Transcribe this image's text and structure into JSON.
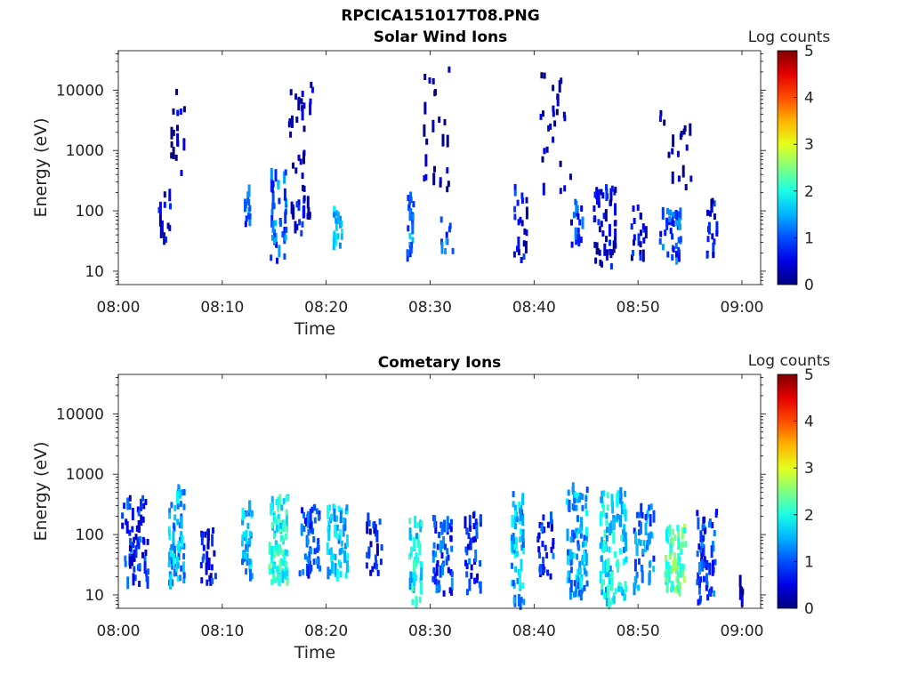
{
  "figure": {
    "title": "RPCICA151017T08.PNG",
    "background": "#ffffff"
  },
  "chart_data": [
    {
      "type": "heatmap",
      "title": "Solar Wind Ions",
      "xlabel": "Time",
      "ylabel": "Energy (eV)",
      "x_tick_labels": [
        "08:00",
        "08:10",
        "08:20",
        "08:30",
        "08:40",
        "08:50",
        "09:00"
      ],
      "x_tick_minutes": [
        0,
        10,
        20,
        30,
        40,
        50,
        60
      ],
      "xlim_minutes": [
        0,
        61.8
      ],
      "y_scale": "log",
      "ylim": [
        6,
        45000
      ],
      "y_tick_labels": [
        "10",
        "100",
        "1000",
        "10000"
      ],
      "y_tick_values": [
        10,
        100,
        1000,
        10000
      ],
      "colorbar": {
        "label": "Log counts",
        "ticks": [
          "0",
          "1",
          "2",
          "3",
          "4",
          "5"
        ],
        "range": [
          0,
          5
        ],
        "colormap": "jet"
      },
      "clusters": [
        {
          "t": 4.5,
          "dt": 1.5,
          "e1": 25,
          "e2": 200,
          "n": 14,
          "v": 0.4
        },
        {
          "t": 5.5,
          "dt": 1.5,
          "e1": 300,
          "e2": 12000,
          "n": 16,
          "v": 0.2
        },
        {
          "t": 12.3,
          "dt": 0.6,
          "e1": 50,
          "e2": 250,
          "n": 14,
          "v": 1.0
        },
        {
          "t": 15.3,
          "dt": 1.5,
          "e1": 12,
          "e2": 450,
          "n": 40,
          "v": 1.1
        },
        {
          "t": 17.5,
          "dt": 2.5,
          "e1": 300,
          "e2": 13000,
          "n": 26,
          "v": 0.2
        },
        {
          "t": 17.5,
          "dt": 2.0,
          "e1": 40,
          "e2": 250,
          "n": 22,
          "v": 0.5
        },
        {
          "t": 21.0,
          "dt": 0.8,
          "e1": 25,
          "e2": 120,
          "n": 18,
          "v": 1.5
        },
        {
          "t": 28.0,
          "dt": 0.6,
          "e1": 15,
          "e2": 200,
          "n": 24,
          "v": 1.2
        },
        {
          "t": 30.5,
          "dt": 2.5,
          "e1": 200,
          "e2": 22000,
          "n": 24,
          "v": 0.2
        },
        {
          "t": 31.5,
          "dt": 1.2,
          "e1": 20,
          "e2": 100,
          "n": 10,
          "v": 1.0
        },
        {
          "t": 38.5,
          "dt": 1.5,
          "e1": 15,
          "e2": 250,
          "n": 22,
          "v": 0.6
        },
        {
          "t": 42.0,
          "dt": 3.0,
          "e1": 200,
          "e2": 20000,
          "n": 26,
          "v": 0.2
        },
        {
          "t": 44.0,
          "dt": 1.2,
          "e1": 25,
          "e2": 150,
          "n": 20,
          "v": 0.8
        },
        {
          "t": 46.7,
          "dt": 2.2,
          "e1": 12,
          "e2": 250,
          "n": 54,
          "v": 0.4
        },
        {
          "t": 50.0,
          "dt": 1.5,
          "e1": 15,
          "e2": 120,
          "n": 20,
          "v": 0.5
        },
        {
          "t": 53.0,
          "dt": 2.0,
          "e1": 15,
          "e2": 100,
          "n": 44,
          "v": 1.0
        },
        {
          "t": 53.5,
          "dt": 3.0,
          "e1": 200,
          "e2": 5000,
          "n": 18,
          "v": 0.2
        },
        {
          "t": 57.0,
          "dt": 1.0,
          "e1": 15,
          "e2": 150,
          "n": 18,
          "v": 0.5
        }
      ]
    },
    {
      "type": "heatmap",
      "title": "Cometary Ions",
      "xlabel": "Time",
      "ylabel": "Energy (eV)",
      "x_tick_labels": [
        "08:00",
        "08:10",
        "08:20",
        "08:30",
        "08:40",
        "08:50",
        "09:00"
      ],
      "x_tick_minutes": [
        0,
        10,
        20,
        30,
        40,
        50,
        60
      ],
      "xlim_minutes": [
        0,
        61.8
      ],
      "y_scale": "log",
      "ylim": [
        6,
        45000
      ],
      "y_tick_labels": [
        "10",
        "100",
        "1000",
        "10000"
      ],
      "y_tick_values": [
        10,
        100,
        1000,
        10000
      ],
      "colorbar": {
        "label": "Log counts",
        "ticks": [
          "0",
          "1",
          "2",
          "3",
          "4",
          "5"
        ],
        "range": [
          0,
          5
        ],
        "colormap": "jet"
      },
      "clusters": [
        {
          "t": 1.5,
          "dt": 2.5,
          "e1": 15,
          "e2": 400,
          "n": 60,
          "v": 0.8
        },
        {
          "t": 5.5,
          "dt": 1.5,
          "e1": 15,
          "e2": 600,
          "n": 70,
          "v": 1.4
        },
        {
          "t": 8.5,
          "dt": 1.5,
          "e1": 15,
          "e2": 120,
          "n": 26,
          "v": 0.7
        },
        {
          "t": 12.3,
          "dt": 1.0,
          "e1": 20,
          "e2": 300,
          "n": 42,
          "v": 1.5
        },
        {
          "t": 15.3,
          "dt": 1.8,
          "e1": 15,
          "e2": 500,
          "n": 96,
          "v": 2.0
        },
        {
          "t": 18.3,
          "dt": 2.0,
          "e1": 20,
          "e2": 300,
          "n": 60,
          "v": 0.9
        },
        {
          "t": 21.0,
          "dt": 2.0,
          "e1": 20,
          "e2": 300,
          "n": 60,
          "v": 1.6
        },
        {
          "t": 24.5,
          "dt": 1.5,
          "e1": 20,
          "e2": 200,
          "n": 26,
          "v": 0.6
        },
        {
          "t": 28.5,
          "dt": 1.2,
          "e1": 7,
          "e2": 200,
          "n": 44,
          "v": 1.8
        },
        {
          "t": 31.0,
          "dt": 2.0,
          "e1": 10,
          "e2": 200,
          "n": 48,
          "v": 0.9
        },
        {
          "t": 34.0,
          "dt": 1.5,
          "e1": 10,
          "e2": 250,
          "n": 38,
          "v": 0.8
        },
        {
          "t": 38.3,
          "dt": 1.2,
          "e1": 7,
          "e2": 500,
          "n": 66,
          "v": 1.5
        },
        {
          "t": 41.0,
          "dt": 1.5,
          "e1": 20,
          "e2": 200,
          "n": 32,
          "v": 0.8
        },
        {
          "t": 44.0,
          "dt": 2.0,
          "e1": 10,
          "e2": 600,
          "n": 90,
          "v": 1.4
        },
        {
          "t": 47.5,
          "dt": 2.5,
          "e1": 7,
          "e2": 500,
          "n": 110,
          "v": 1.7
        },
        {
          "t": 50.5,
          "dt": 2.0,
          "e1": 12,
          "e2": 300,
          "n": 50,
          "v": 1.2
        },
        {
          "t": 53.5,
          "dt": 2.0,
          "e1": 12,
          "e2": 150,
          "n": 72,
          "v": 2.3
        },
        {
          "t": 56.5,
          "dt": 2.0,
          "e1": 7,
          "e2": 250,
          "n": 58,
          "v": 1.0
        },
        {
          "t": 59.8,
          "dt": 0.3,
          "e1": 7,
          "e2": 25,
          "n": 8,
          "v": 0.5
        }
      ]
    }
  ]
}
